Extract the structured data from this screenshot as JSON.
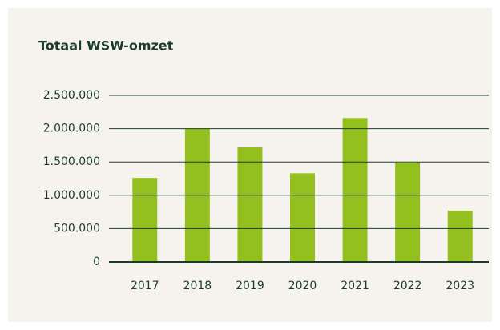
{
  "chart_data": {
    "type": "bar",
    "title": "Totaal WSW-omzet",
    "categories": [
      "2017",
      "2018",
      "2019",
      "2020",
      "2021",
      "2022",
      "2023"
    ],
    "values": [
      1260000,
      2000000,
      1720000,
      1330000,
      2160000,
      1490000,
      770000
    ],
    "color": "#94c01f",
    "ylim": [
      0,
      2500000
    ],
    "yticks": [
      0,
      {
        "value": 500000,
        "label": "500.000"
      },
      {
        "value": 1000000,
        "label": "1.000.000"
      },
      {
        "value": 1500000,
        "label": "1.500.000"
      },
      {
        "value": 2000000,
        "label": "2.000.000"
      },
      {
        "value": 2500000,
        "label": "2.500.000"
      }
    ],
    "grid": true
  }
}
